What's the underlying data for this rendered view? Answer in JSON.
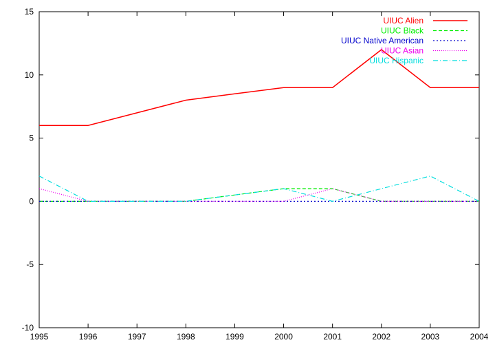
{
  "chart_data": {
    "type": "line",
    "title": "",
    "xlabel": "",
    "ylabel": "",
    "x": [
      1995,
      1996,
      1997,
      1998,
      1999,
      2000,
      2001,
      2002,
      2003,
      2004
    ],
    "xlim": [
      1995,
      2004
    ],
    "ylim": [
      -10,
      15
    ],
    "x_ticks": [
      "1995",
      "1996",
      "1997",
      "1998",
      "1999",
      "2000",
      "2001",
      "2002",
      "2003",
      "2004"
    ],
    "y_ticks": [
      "-10",
      "-5",
      "0",
      "5",
      "10",
      "15"
    ],
    "x_tick_values": [
      1995,
      1996,
      1997,
      1998,
      1999,
      2000,
      2001,
      2002,
      2003,
      2004
    ],
    "y_tick_values": [
      -10,
      -5,
      0,
      5,
      10,
      15
    ],
    "grid": false,
    "legend_position": "top-right",
    "series": [
      {
        "name": "UIUC Alien",
        "color": "#ff0000",
        "dash": "solid",
        "values": [
          6,
          6,
          7,
          8,
          8.5,
          9,
          9,
          12,
          9,
          9
        ]
      },
      {
        "name": "UIUC Black",
        "color": "#00ee00",
        "dash": "dashed",
        "values": [
          0,
          0,
          0,
          0,
          0.5,
          1,
          1,
          0,
          0,
          0
        ]
      },
      {
        "name": "UIUC Native American",
        "color": "#0000cc",
        "dash": "dotted",
        "values": [
          0,
          0,
          0,
          0,
          0,
          0,
          0,
          0,
          0,
          0
        ]
      },
      {
        "name": "UIUC Asian",
        "color": "#ee00ee",
        "dash": "fine-dotted",
        "values": [
          1,
          0,
          0,
          0,
          0,
          0,
          1,
          0,
          0,
          0
        ]
      },
      {
        "name": "UIUC Hispanic",
        "color": "#00dddd",
        "dash": "dash-dot",
        "values": [
          2,
          0,
          0,
          0,
          0.5,
          1,
          0,
          1,
          2,
          0
        ]
      }
    ]
  }
}
